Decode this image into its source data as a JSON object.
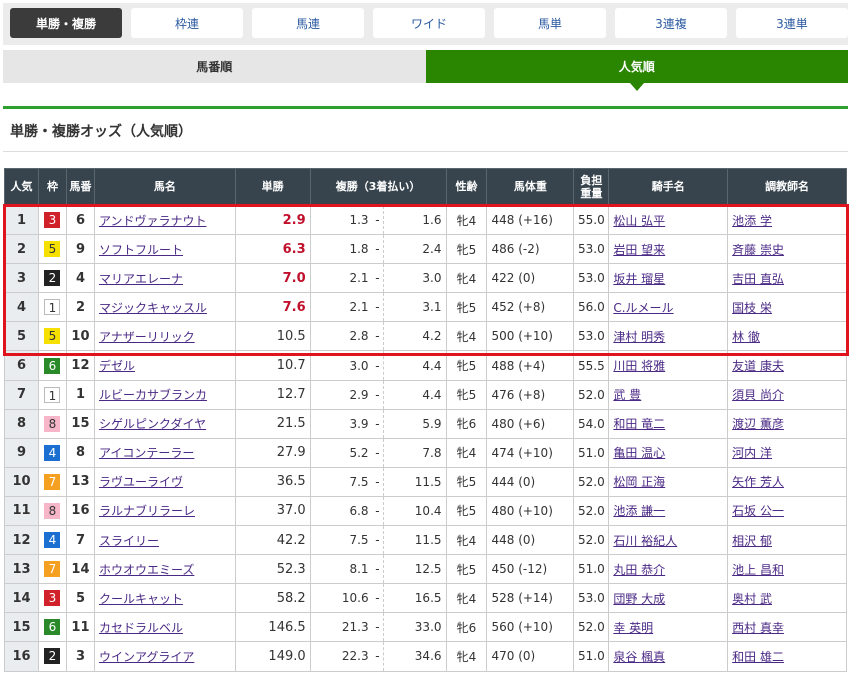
{
  "bet_tabs": [
    "単勝・複勝",
    "枠連",
    "馬連",
    "ワイド",
    "馬単",
    "3連複",
    "3連単"
  ],
  "active_bet_tab": 0,
  "sort_tabs": [
    "馬番順",
    "人気順"
  ],
  "active_sort_tab": 1,
  "section_title": "単勝・複勝オッズ（人気順）",
  "headers": {
    "pop": "人気",
    "waku": "枠",
    "num": "馬番",
    "name": "馬名",
    "win": "単勝",
    "place": "複勝（3着払い）",
    "sexage": "性齢",
    "weight": "馬体重",
    "load": "負担重量",
    "jockey": "騎手名",
    "trainer": "調教師名"
  },
  "colors": {
    "waku1": "#ffffff",
    "waku2": "#222222",
    "waku3": "#d0202a",
    "waku4": "#1a6fd0",
    "waku5": "#f5e000",
    "waku6": "#2a8a2a",
    "waku7": "#f5a020",
    "waku8": "#f6b6c8",
    "accent": "#2a8500",
    "highlight_box": "#e0141e"
  },
  "highlighted_rows": 5,
  "rows": [
    {
      "pop": "1",
      "waku": "3",
      "num": "6",
      "name": "アンドヴァラナウト",
      "win": "2.9",
      "pmin": "1.3",
      "pmax": "1.6",
      "sexage": "牝4",
      "weight": "448 (+16)",
      "load": "55.0",
      "jockey": "松山 弘平",
      "trainer": "池添 学",
      "hot": true
    },
    {
      "pop": "2",
      "waku": "5",
      "num": "9",
      "name": "ソフトフルート",
      "win": "6.3",
      "pmin": "1.8",
      "pmax": "2.4",
      "sexage": "牝5",
      "weight": "486 (-2)",
      "load": "53.0",
      "jockey": "岩田 望来",
      "trainer": "斉藤 崇史",
      "hot": true
    },
    {
      "pop": "3",
      "waku": "2",
      "num": "4",
      "name": "マリアエレーナ",
      "win": "7.0",
      "pmin": "2.1",
      "pmax": "3.0",
      "sexage": "牝4",
      "weight": "422 (0)",
      "load": "53.0",
      "jockey": "坂井 瑠星",
      "trainer": "吉田 直弘",
      "hot": true
    },
    {
      "pop": "4",
      "waku": "1",
      "num": "2",
      "name": "マジックキャッスル",
      "win": "7.6",
      "pmin": "2.1",
      "pmax": "3.1",
      "sexage": "牝5",
      "weight": "452 (+8)",
      "load": "56.0",
      "jockey": "C.ルメール",
      "trainer": "国枝 栄",
      "hot": true
    },
    {
      "pop": "5",
      "waku": "5",
      "num": "10",
      "name": "アナザーリリック",
      "win": "10.5",
      "pmin": "2.8",
      "pmax": "4.2",
      "sexage": "牝4",
      "weight": "500 (+10)",
      "load": "53.0",
      "jockey": "津村 明秀",
      "trainer": "林 徹"
    },
    {
      "pop": "6",
      "waku": "6",
      "num": "12",
      "name": "デゼル",
      "win": "10.7",
      "pmin": "3.0",
      "pmax": "4.4",
      "sexage": "牝5",
      "weight": "488 (+4)",
      "load": "55.5",
      "jockey": "川田 将雅",
      "trainer": "友道 康夫"
    },
    {
      "pop": "7",
      "waku": "1",
      "num": "1",
      "name": "ルビーカサブランカ",
      "win": "12.7",
      "pmin": "2.9",
      "pmax": "4.4",
      "sexage": "牝5",
      "weight": "476 (+8)",
      "load": "52.0",
      "jockey": "武 豊",
      "trainer": "須貝 尚介"
    },
    {
      "pop": "8",
      "waku": "8",
      "num": "15",
      "name": "シゲルピンクダイヤ",
      "win": "21.5",
      "pmin": "3.9",
      "pmax": "5.9",
      "sexage": "牝6",
      "weight": "480 (+6)",
      "load": "54.0",
      "jockey": "和田 竜二",
      "trainer": "渡辺 薫彦"
    },
    {
      "pop": "9",
      "waku": "4",
      "num": "8",
      "name": "アイコンテーラー",
      "win": "27.9",
      "pmin": "5.2",
      "pmax": "7.8",
      "sexage": "牝4",
      "weight": "474 (+10)",
      "load": "51.0",
      "jockey": "亀田 温心",
      "trainer": "河内 洋"
    },
    {
      "pop": "10",
      "waku": "7",
      "num": "13",
      "name": "ラヴユーライヴ",
      "win": "36.5",
      "pmin": "7.5",
      "pmax": "11.5",
      "sexage": "牝5",
      "weight": "444 (0)",
      "load": "52.0",
      "jockey": "松岡 正海",
      "trainer": "矢作 芳人"
    },
    {
      "pop": "11",
      "waku": "8",
      "num": "16",
      "name": "ラルナブリラーレ",
      "win": "37.0",
      "pmin": "6.8",
      "pmax": "10.4",
      "sexage": "牝5",
      "weight": "480 (+10)",
      "load": "52.0",
      "jockey": "池添 謙一",
      "trainer": "石坂 公一"
    },
    {
      "pop": "12",
      "waku": "4",
      "num": "7",
      "name": "スライリー",
      "win": "42.2",
      "pmin": "7.5",
      "pmax": "11.5",
      "sexage": "牝4",
      "weight": "448 (0)",
      "load": "52.0",
      "jockey": "石川 裕紀人",
      "trainer": "相沢 郁"
    },
    {
      "pop": "13",
      "waku": "7",
      "num": "14",
      "name": "ホウオウエミーズ",
      "win": "52.3",
      "pmin": "8.1",
      "pmax": "12.5",
      "sexage": "牝5",
      "weight": "450 (-12)",
      "load": "51.0",
      "jockey": "丸田 恭介",
      "trainer": "池上 昌和"
    },
    {
      "pop": "14",
      "waku": "3",
      "num": "5",
      "name": "クールキャット",
      "win": "58.2",
      "pmin": "10.6",
      "pmax": "16.5",
      "sexage": "牝4",
      "weight": "528 (+14)",
      "load": "53.0",
      "jockey": "団野 大成",
      "trainer": "奥村 武"
    },
    {
      "pop": "15",
      "waku": "6",
      "num": "11",
      "name": "カセドラルベル",
      "win": "146.5",
      "pmin": "21.3",
      "pmax": "33.0",
      "sexage": "牝6",
      "weight": "560 (+10)",
      "load": "52.0",
      "jockey": "幸 英明",
      "trainer": "西村 真幸"
    },
    {
      "pop": "16",
      "waku": "2",
      "num": "3",
      "name": "ウインアグライア",
      "win": "149.0",
      "pmin": "22.3",
      "pmax": "34.6",
      "sexage": "牝4",
      "weight": "470 (0)",
      "load": "51.0",
      "jockey": "泉谷 楓真",
      "trainer": "和田 雄二"
    }
  ],
  "dash": "-"
}
